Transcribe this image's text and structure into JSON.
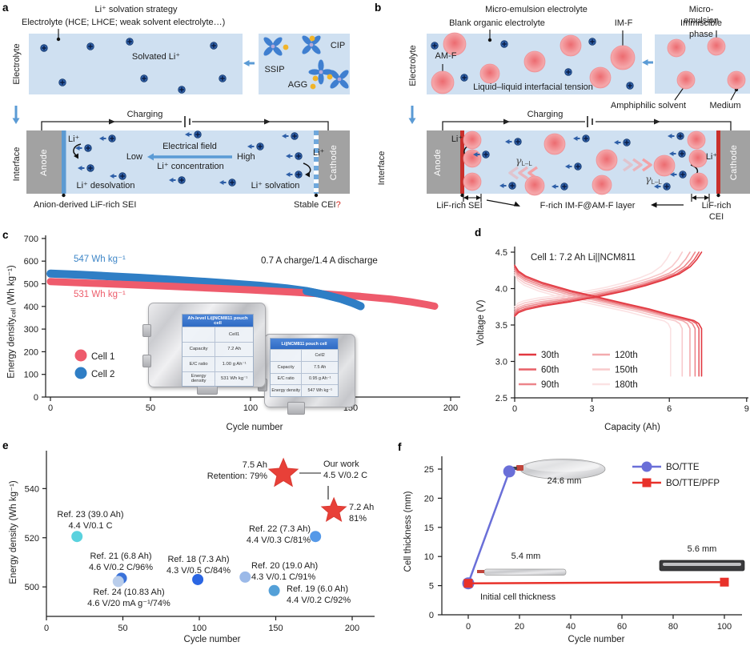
{
  "panel_a": {
    "letter": "a",
    "title": "Li⁺ solvation strategy",
    "electrolyte_note": "Electrolyte (HCE; LHCE; weak solvent electrolyte…)",
    "electrolyte_side": "Electrolyte",
    "solvated": "Solvated Li⁺",
    "ssip": "SSIP",
    "cip": "CIP",
    "agg": "AGG",
    "charging": "Charging",
    "interface_side": "Interface",
    "anode": "Anode",
    "cathode": "Cathode",
    "li_anode": "Li⁺",
    "li_cathode": "Li⁺",
    "electrical_field": "Electrical field",
    "low": "Low",
    "high": "High",
    "li_concentration": "Li⁺ concentration",
    "li_desolvation": "Li⁺ desolvation",
    "li_solvation": "Li⁺ solvation",
    "sei_caption": "Anion-derived LiF-rich SEI",
    "cei_caption": "Stable CEI",
    "cei_question": "?"
  },
  "panel_b": {
    "letter": "b",
    "title": "Micro-emulsion electrolyte",
    "blank_note": "Blank organic electrolyte",
    "imf": "IM-F",
    "micro_emulsion": "Micro-emulsion",
    "immiscible": "Immiscible phase",
    "electrolyte_side": "Electrolyte",
    "amf": "AM-F",
    "tension": "Liquid–liquid interfacial tension",
    "amphiphilic": "Amphiphilic solvent",
    "medium": "Medium",
    "charging": "Charging",
    "interface_side": "Interface",
    "anode": "Anode",
    "cathode": "Cathode",
    "li_anode": "Li⁺",
    "li_cathode": "Li⁺",
    "gamma": "γ",
    "gamma_sub": "L–L",
    "sei_caption": "LiF-rich SEI",
    "layer_caption": "F-rich IM-F@AM-F layer",
    "cei_caption": "LiF-rich CEI"
  },
  "panel_letters": {
    "c": "c",
    "d": "d",
    "e": "e",
    "f": "f"
  },
  "insets_c": {
    "pouch1": {
      "header": "Ah-level Li||NCM811 pouch cell",
      "rows": [
        [
          "",
          "Cell1"
        ],
        [
          "Capacity",
          "7.2 Ah"
        ],
        [
          "E/C ratio",
          "1.00 g Ah⁻¹"
        ],
        [
          "Energy density",
          "531 Wh kg⁻¹"
        ]
      ]
    },
    "pouch2": {
      "header": "Li||NCM811 pouch cell",
      "rows": [
        [
          "",
          "Cell2"
        ],
        [
          "Capacity",
          "7.5 Ah"
        ],
        [
          "E/C ratio",
          "0.95 g Ah⁻¹"
        ],
        [
          "Energy density",
          "547 Wh kg⁻¹"
        ]
      ]
    }
  },
  "chart_data": [
    {
      "panel": "c",
      "type": "scatter",
      "xlabel": "Cycle number",
      "ylabel_main": "Energy density",
      "ylabel_sub": "cell",
      "ylabel_unit": " (Wh kg⁻¹)",
      "xlim": [
        0,
        200
      ],
      "ylim": [
        0,
        700
      ],
      "xticks": [
        0,
        50,
        100,
        150,
        200
      ],
      "yticks": [
        0,
        100,
        200,
        300,
        400,
        500,
        600,
        700
      ],
      "annotation": "0.7 A charge/1.4 A discharge",
      "series": [
        {
          "name": "Cell 1",
          "color": "#ee5b6c",
          "value_label": "531 Wh kg⁻¹",
          "points": [
            [
              0,
              510
            ],
            [
              20,
              503
            ],
            [
              40,
              496
            ],
            [
              60,
              489
            ],
            [
              80,
              481
            ],
            [
              100,
              473
            ],
            [
              120,
              464
            ],
            [
              140,
              453
            ],
            [
              155,
              444
            ],
            [
              170,
              432
            ],
            [
              180,
              420
            ],
            [
              188,
              408
            ],
            [
              192,
              401
            ]
          ]
        },
        {
          "name": "Cell 2",
          "color": "#2f7ec5",
          "value_label": "547 Wh kg⁻¹",
          "points": [
            [
              0,
              545
            ],
            [
              15,
              540
            ],
            [
              30,
              533
            ],
            [
              45,
              526
            ],
            [
              60,
              518
            ],
            [
              75,
              510
            ],
            [
              90,
              501
            ],
            [
              105,
              491
            ],
            [
              118,
              480
            ],
            [
              128,
              468
            ],
            [
              137,
              452
            ],
            [
              145,
              434
            ],
            [
              151,
              416
            ],
            [
              155,
              401
            ]
          ]
        }
      ]
    },
    {
      "panel": "d",
      "type": "line",
      "title": "Cell 1: 7.2 Ah Li||NCM811",
      "xlabel": "Capacity (Ah)",
      "ylabel": "Voltage (V)",
      "xlim": [
        0,
        9
      ],
      "ylim": [
        2.5,
        4.6
      ],
      "xticks": [
        0,
        3,
        6,
        9
      ],
      "yticks": [
        "2.5",
        "3.0",
        "3.5",
        "4.0",
        "4.5"
      ],
      "charge_profile": [
        [
          0,
          3.62
        ],
        [
          0.02,
          3.67
        ],
        [
          0.06,
          3.71
        ],
        [
          0.15,
          3.76
        ],
        [
          0.3,
          3.82
        ],
        [
          0.45,
          3.89
        ],
        [
          0.58,
          3.96
        ],
        [
          0.7,
          4.04
        ],
        [
          0.8,
          4.12
        ],
        [
          0.88,
          4.2
        ],
        [
          0.94,
          4.3
        ],
        [
          0.975,
          4.4
        ],
        [
          1,
          4.5
        ]
      ],
      "discharge_profile": [
        [
          0,
          4.32
        ],
        [
          0.02,
          4.24
        ],
        [
          0.06,
          4.17
        ],
        [
          0.15,
          4.08
        ],
        [
          0.3,
          3.97
        ],
        [
          0.45,
          3.88
        ],
        [
          0.6,
          3.79
        ],
        [
          0.72,
          3.72
        ],
        [
          0.82,
          3.65
        ],
        [
          0.9,
          3.6
        ],
        [
          0.96,
          3.56
        ],
        [
          0.985,
          3.52
        ],
        [
          1,
          3.45
        ]
      ],
      "discharge_end_voltage": 2.8,
      "cycles": [
        {
          "name": "30th",
          "color": "#e23840",
          "capacity": 7.25,
          "fan": 0
        },
        {
          "name": "60th",
          "color": "#e75f66",
          "capacity": 7.15,
          "fan": 0.02
        },
        {
          "name": "90th",
          "color": "#ed858a",
          "capacity": 7.0,
          "fan": 0.045
        },
        {
          "name": "120th",
          "color": "#f3abae",
          "capacity": 6.8,
          "fan": 0.07
        },
        {
          "name": "150th",
          "color": "#f8cacc",
          "capacity": 6.5,
          "fan": 0.1
        },
        {
          "name": "180th",
          "color": "#fbe2e3",
          "capacity": 6.05,
          "fan": 0.13
        }
      ]
    },
    {
      "panel": "e",
      "type": "scatter",
      "xlabel": "Cycle number",
      "ylabel": "Energy density (Wh kg⁻¹)",
      "xlim": [
        0,
        225
      ],
      "ylim": [
        488,
        556
      ],
      "xticks": [
        0,
        50,
        100,
        150,
        200
      ],
      "yticks": [
        500,
        520,
        540
      ],
      "points": [
        {
          "x": 20,
          "y": 520.5,
          "color": "#5ad2de",
          "label": [
            "Ref. 23 (39.0 Ah)",
            "4.4 V/0.1 C"
          ]
        },
        {
          "x": 49,
          "y": 503.5,
          "color": "#3a72d9",
          "label": [
            "Ref. 21 (6.8 Ah)",
            "4.6 V/0.2 C/96%"
          ]
        },
        {
          "x": 47,
          "y": 502.2,
          "color": "#b9cdeb",
          "label": [
            "Ref. 24 (10.83 Ah)",
            "4.6 V/20 mA g⁻¹/74%"
          ]
        },
        {
          "x": 99,
          "y": 503,
          "color": "#2b66e3",
          "label": [
            "Ref. 18 (7.3 Ah)",
            "4.3 V/0.5 C/84%"
          ]
        },
        {
          "x": 130,
          "y": 504,
          "color": "#9bb9e8",
          "label": [
            "Ref. 20 (19.0 Ah)",
            "4.3 V/0.1 C/91%"
          ]
        },
        {
          "x": 149,
          "y": 498.5,
          "color": "#54a0d8",
          "label": [
            "Ref. 19 (6.0 Ah)",
            "4.4 V/0.2 C/92%"
          ]
        },
        {
          "x": 176,
          "y": 520.5,
          "color": "#5599e8",
          "label": [
            "Ref. 22 (7.3 Ah)",
            "4.4 V/0.3 C/81%"
          ]
        }
      ],
      "stars": [
        {
          "x": 155,
          "y": 546,
          "size": 19,
          "label": [
            "7.5 Ah",
            "Retention: 79%"
          ]
        },
        {
          "x": 188,
          "y": 531,
          "size": 16,
          "label": [
            "7.2 Ah",
            "81%"
          ]
        }
      ],
      "star_color": "#e84038",
      "our_work_label": [
        "Our work",
        "4.5 V/0.2 C"
      ]
    },
    {
      "panel": "f",
      "type": "line",
      "xlabel": "Cycle number",
      "ylabel": "Cell thickness (mm)",
      "xlim": [
        0,
        100
      ],
      "ylim": [
        0,
        27
      ],
      "xticks": [
        0,
        20,
        40,
        60,
        80,
        100
      ],
      "yticks": [
        0,
        5,
        10,
        15,
        20,
        25
      ],
      "series": [
        {
          "name": "BO/TTE",
          "color": "#6a6fd8",
          "marker": "circle",
          "points": [
            [
              0,
              5.4
            ],
            [
              16,
              24.6
            ]
          ]
        },
        {
          "name": "BO/TTE/PFP",
          "color": "#e8312a",
          "marker": "square",
          "points": [
            [
              0,
              5.4
            ],
            [
              100,
              5.6
            ]
          ]
        }
      ],
      "annotations": [
        "24.6 mm",
        "5.4 mm",
        "5.6 mm",
        "Initial cell thickness"
      ]
    }
  ]
}
